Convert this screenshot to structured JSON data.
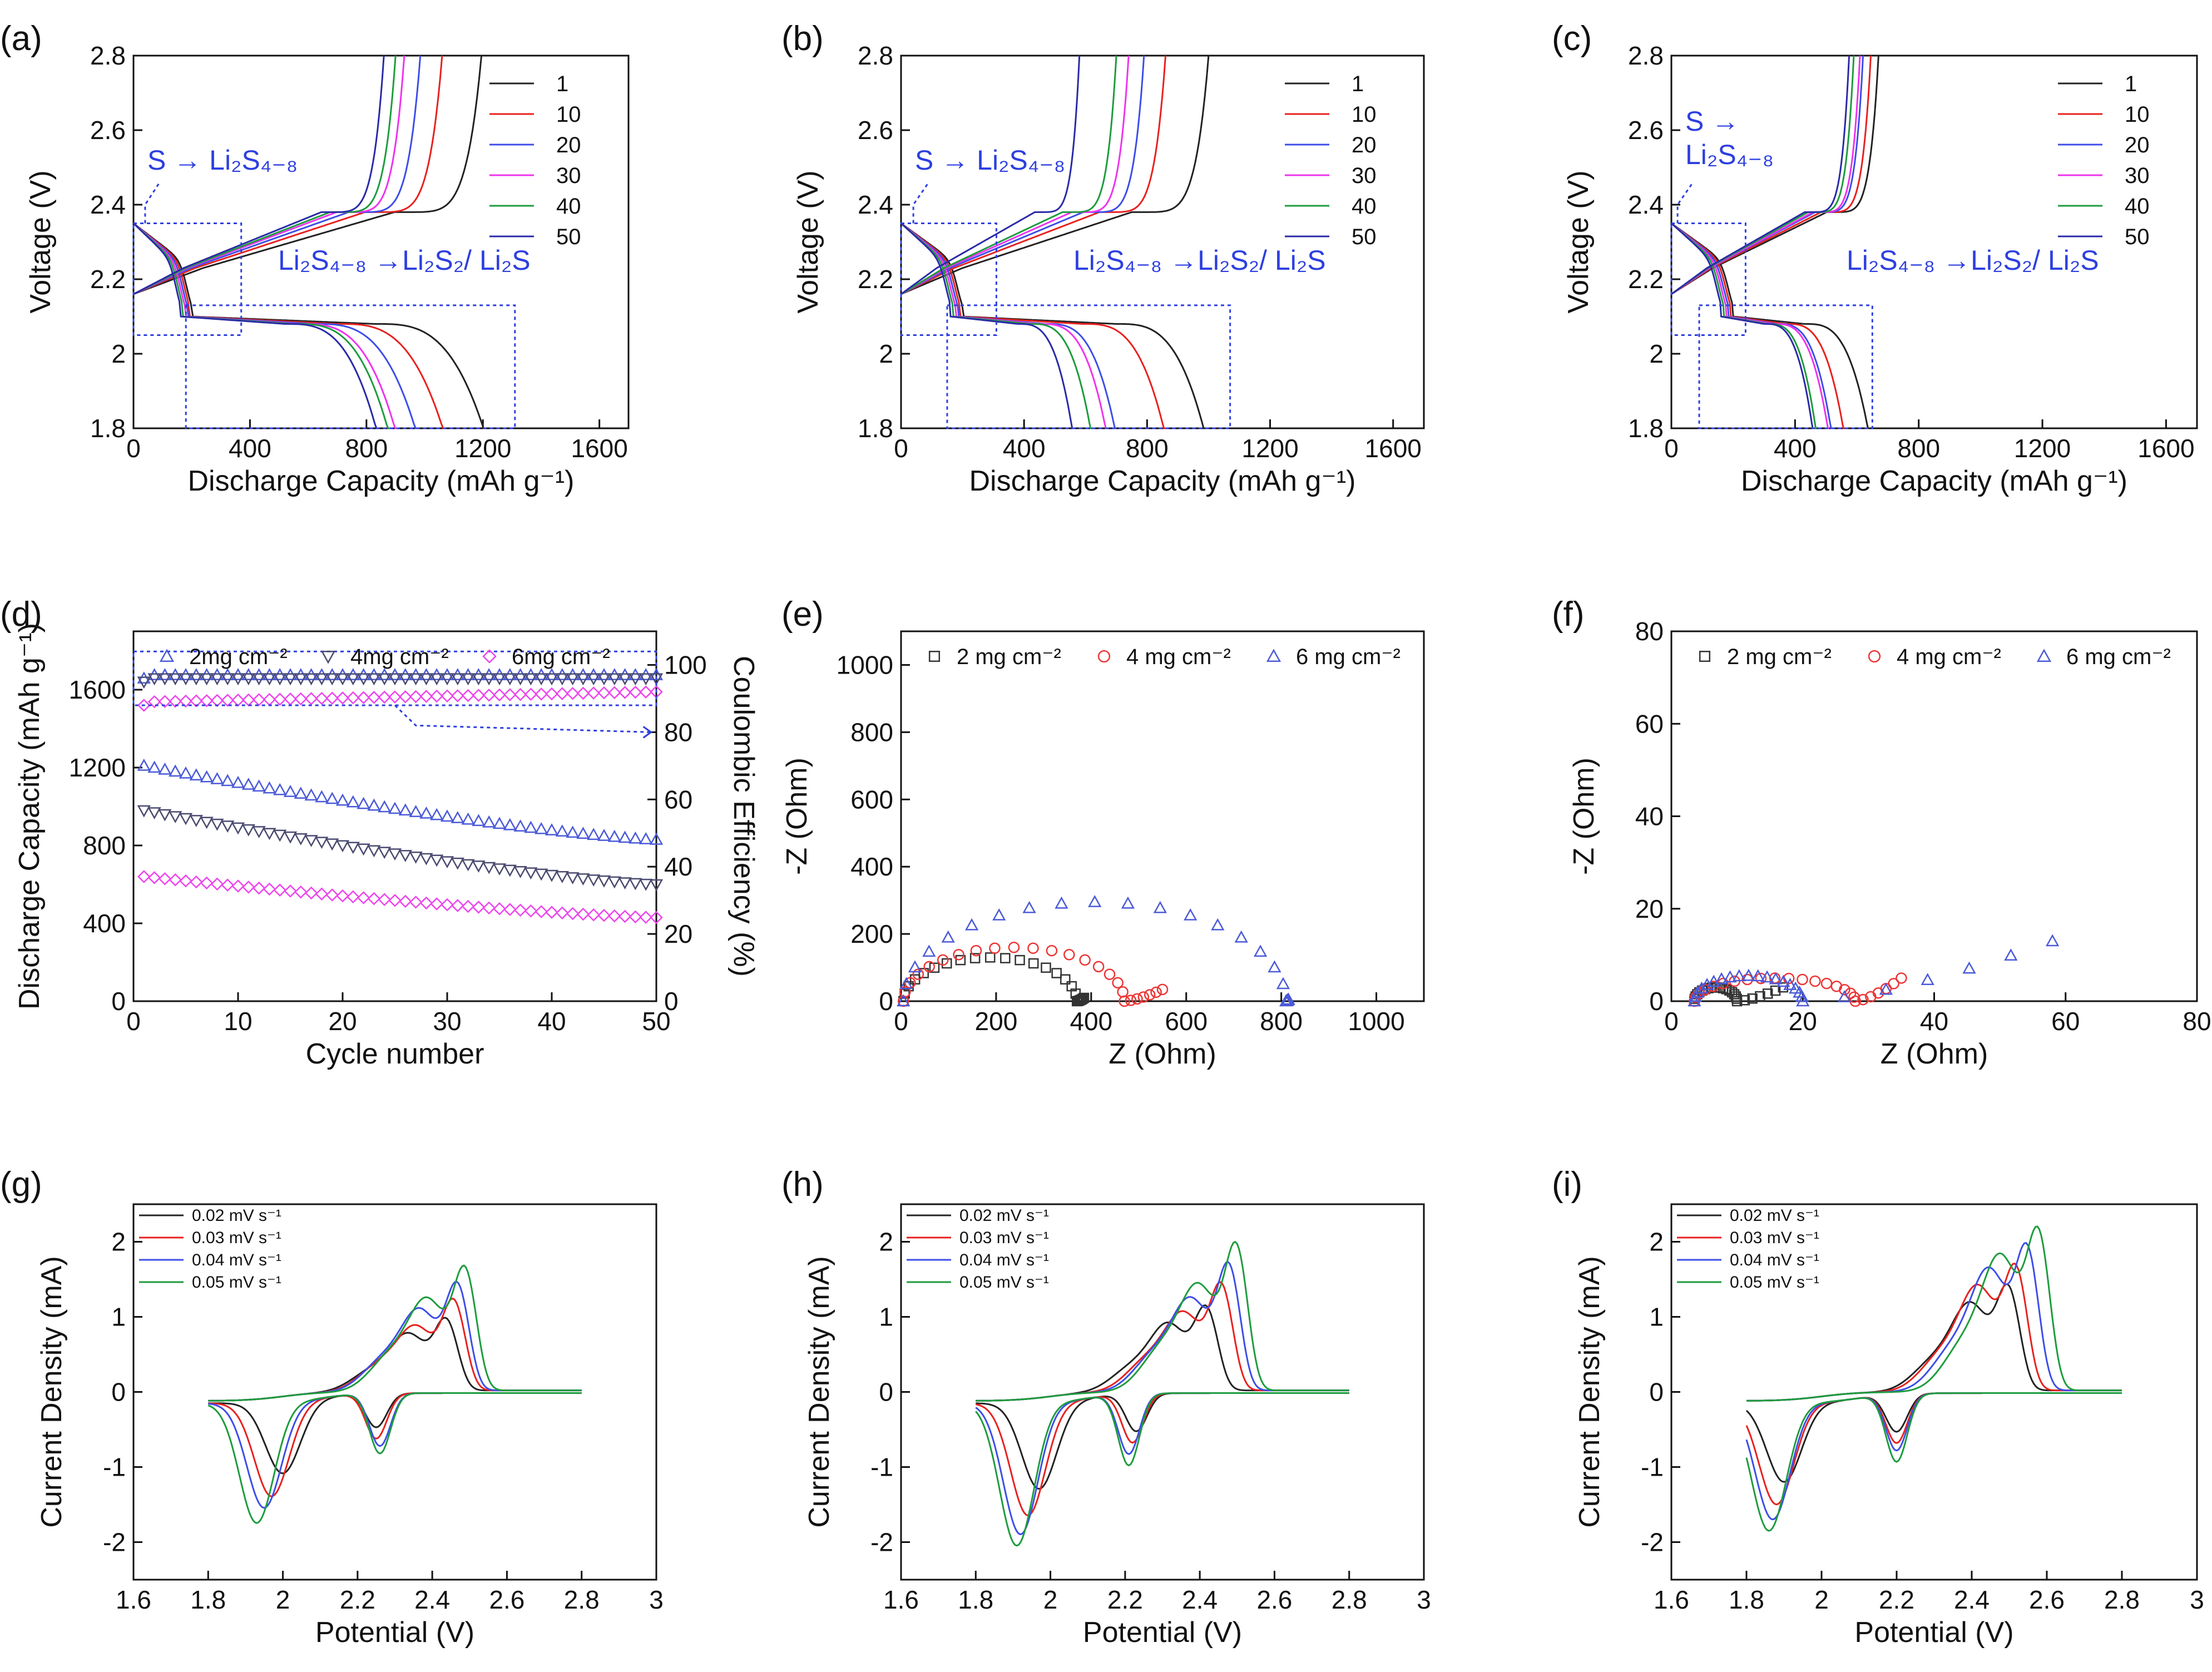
{
  "chart_data": [
    {
      "id": "a",
      "panel_label": "(a)",
      "type": "line",
      "xlabel": "Discharge Capacity (mAh g⁻¹)",
      "ylabel": "Voltage (V)",
      "xlim": [
        0,
        1700
      ],
      "ylim": [
        1.8,
        2.8
      ],
      "xticks": [
        0,
        400,
        800,
        1200,
        1600
      ],
      "yticks": [
        1.8,
        2.0,
        2.2,
        2.4,
        2.6,
        2.8
      ],
      "legend": {
        "position": "top-right",
        "entries": [
          "1",
          "10",
          "20",
          "30",
          "40",
          "50"
        ]
      },
      "series": [
        {
          "name": "1",
          "color": "#222222",
          "discharge_end": 1210,
          "charge_end": 1195,
          "plateau_end": 830
        },
        {
          "name": "10",
          "color": "#e8211f",
          "discharge_end": 1070,
          "charge_end": 1060,
          "plateau_end": 700
        },
        {
          "name": "20",
          "color": "#3d4ee8",
          "discharge_end": 975,
          "charge_end": 985,
          "plateau_end": 620
        },
        {
          "name": "30",
          "color": "#ee33ee",
          "discharge_end": 905,
          "charge_end": 930,
          "plateau_end": 570
        },
        {
          "name": "40",
          "color": "#1d9c3d",
          "discharge_end": 880,
          "charge_end": 900,
          "plateau_end": 550
        },
        {
          "name": "50",
          "color": "#2a2aa8",
          "discharge_end": 840,
          "charge_end": 860,
          "plateau_end": 520
        }
      ],
      "annotations": [
        {
          "text": "S → Li₂S₄₋₈"
        },
        {
          "text": "Li₂S₄₋₈ →Li₂S₂/ Li₂S"
        }
      ],
      "upper_box": {
        "x": [
          0,
          370
        ],
        "y": [
          2.05,
          2.35
        ]
      },
      "lower_box": {
        "x": [
          180,
          1310
        ],
        "y": [
          1.8,
          2.13
        ]
      }
    },
    {
      "id": "b",
      "panel_label": "(b)",
      "type": "line",
      "xlabel": "Discharge Capacity (mAh g⁻¹)",
      "ylabel": "Voltage (V)",
      "xlim": [
        0,
        1700
      ],
      "ylim": [
        1.8,
        2.8
      ],
      "xticks": [
        0,
        400,
        800,
        1200,
        1600
      ],
      "yticks": [
        1.8,
        2.0,
        2.2,
        2.4,
        2.6,
        2.8
      ],
      "legend": {
        "position": "top-right",
        "entries": [
          "1",
          "10",
          "20",
          "30",
          "40",
          "50"
        ]
      },
      "series": [
        {
          "name": "1",
          "color": "#222222",
          "discharge_end": 990,
          "charge_end": 1000,
          "plateau_end": 700
        },
        {
          "name": "10",
          "color": "#e8211f",
          "discharge_end": 860,
          "charge_end": 860,
          "plateau_end": 590
        },
        {
          "name": "20",
          "color": "#3d4ee8",
          "discharge_end": 700,
          "charge_end": 790,
          "plateau_end": 470
        },
        {
          "name": "30",
          "color": "#ee33ee",
          "discharge_end": 670,
          "charge_end": 740,
          "plateau_end": 450
        },
        {
          "name": "40",
          "color": "#1d9c3d",
          "discharge_end": 620,
          "charge_end": 700,
          "plateau_end": 420
        },
        {
          "name": "50",
          "color": "#2a2aa8",
          "discharge_end": 560,
          "charge_end": 580,
          "plateau_end": 380
        }
      ],
      "annotations": [
        {
          "text": "S → Li₂S₄₋₈"
        },
        {
          "text": "Li₂S₄₋₈ →Li₂S₂/ Li₂S"
        }
      ],
      "upper_box": {
        "x": [
          0,
          310
        ],
        "y": [
          2.05,
          2.35
        ]
      },
      "lower_box": {
        "x": [
          150,
          1070
        ],
        "y": [
          1.8,
          2.13
        ]
      }
    },
    {
      "id": "c",
      "panel_label": "(c)",
      "type": "line",
      "xlabel": "Discharge Capacity (mAh g⁻¹)",
      "ylabel": "Voltage (V)",
      "xlim": [
        0,
        1700
      ],
      "ylim": [
        1.8,
        2.8
      ],
      "xticks": [
        0,
        400,
        800,
        1200,
        1600
      ],
      "yticks": [
        1.8,
        2.0,
        2.2,
        2.4,
        2.6,
        2.8
      ],
      "legend": {
        "position": "top-right",
        "entries": [
          "1",
          "10",
          "20",
          "30",
          "40",
          "50"
        ]
      },
      "series": [
        {
          "name": "1",
          "color": "#222222",
          "discharge_end": 640,
          "charge_end": 670,
          "plateau_end": 430
        },
        {
          "name": "10",
          "color": "#e8211f",
          "discharge_end": 560,
          "charge_end": 645,
          "plateau_end": 370
        },
        {
          "name": "20",
          "color": "#3d4ee8",
          "discharge_end": 520,
          "charge_end": 620,
          "plateau_end": 340
        },
        {
          "name": "30",
          "color": "#ee33ee",
          "discharge_end": 510,
          "charge_end": 610,
          "plateau_end": 330
        },
        {
          "name": "40",
          "color": "#1d9c3d",
          "discharge_end": 470,
          "charge_end": 590,
          "plateau_end": 310
        },
        {
          "name": "50",
          "color": "#2a2aa8",
          "discharge_end": 460,
          "charge_end": 575,
          "plateau_end": 300
        }
      ],
      "annotations": [
        {
          "text": "S →"
        },
        {
          "text": "Li₂S₄₋₈"
        },
        {
          "text": "Li₂S₄₋₈ →Li₂S₂/ Li₂S"
        }
      ],
      "upper_box": {
        "x": [
          0,
          240
        ],
        "y": [
          2.05,
          2.35
        ]
      },
      "lower_box": {
        "x": [
          90,
          650
        ],
        "y": [
          1.8,
          2.13
        ]
      }
    },
    {
      "id": "d",
      "panel_label": "(d)",
      "type": "scatter",
      "xlabel": "Cycle number",
      "ylabel": "Discharge Capacity (mAh g⁻¹)",
      "y2label": "Coulombic Efficiency (%)",
      "xlim": [
        0,
        50
      ],
      "ylim": [
        0,
        1900
      ],
      "y2lim": [
        0,
        110
      ],
      "xticks": [
        0,
        10,
        20,
        30,
        40,
        50
      ],
      "yticks": [
        0,
        400,
        800,
        1200,
        1600
      ],
      "y2ticks": [
        0,
        20,
        40,
        60,
        80,
        100
      ],
      "legend": {
        "position": "top",
        "entries": [
          "2mg cm⁻²",
          "4mg cm⁻²",
          "6mg cm⁻²"
        ]
      },
      "series": [
        {
          "name": "2mg cm⁻²",
          "marker": "triangle-up",
          "color": "#4a5ad8",
          "capacity_start": 1210,
          "capacity_end": 830,
          "ce": 97
        },
        {
          "name": "4mg cm⁻²",
          "marker": "triangle-down",
          "color": "#4a4a70",
          "capacity_start": 980,
          "capacity_end": 600,
          "ce": 96
        },
        {
          "name": "6mg cm⁻²",
          "marker": "diamond",
          "color": "#ee44ee",
          "capacity_start": 640,
          "capacity_end": 430,
          "ce": 89
        }
      ],
      "ce_box": {
        "x": [
          0,
          50
        ],
        "y2": [
          88,
          104
        ]
      }
    },
    {
      "id": "e",
      "panel_label": "(e)",
      "type": "scatter",
      "xlabel": "Z (Ohm)",
      "ylabel": "-Z (Ohm)",
      "xlim": [
        0,
        1100
      ],
      "ylim": [
        0,
        1100
      ],
      "xticks": [
        0,
        200,
        400,
        600,
        800,
        1000
      ],
      "yticks": [
        0,
        200,
        400,
        600,
        800,
        1000
      ],
      "legend": {
        "position": "top",
        "entries": [
          "2 mg cm⁻²",
          "4 mg cm⁻²",
          "6 mg cm⁻²"
        ]
      },
      "series": [
        {
          "name": "2 mg cm⁻²",
          "marker": "square",
          "color": "#333333",
          "r0": 5,
          "r1": 370,
          "peak": 130,
          "tail_to": 385,
          "tail_height": 10
        },
        {
          "name": "4 mg cm⁻²",
          "marker": "circle",
          "color": "#ee3333",
          "r0": 5,
          "r1": 470,
          "peak": 160,
          "tail_to": 550,
          "tail_height": 35
        },
        {
          "name": "6 mg cm⁻²",
          "marker": "triangle-up",
          "color": "#4a5ad8",
          "r0": 5,
          "r1": 810,
          "peak": 295,
          "tail_to": 815,
          "tail_height": 5
        }
      ]
    },
    {
      "id": "f",
      "panel_label": "(f)",
      "type": "scatter",
      "xlabel": "Z (Ohm)",
      "ylabel": "-Z (Ohm)",
      "xlim": [
        0,
        80
      ],
      "ylim": [
        0,
        80
      ],
      "xticks": [
        0,
        20,
        40,
        60,
        80
      ],
      "yticks": [
        0,
        20,
        40,
        60,
        80
      ],
      "legend": {
        "position": "top",
        "entries": [
          "2 mg cm⁻²",
          "4 mg cm⁻²",
          "6 mg cm⁻²"
        ]
      },
      "series": [
        {
          "name": "2 mg cm⁻²",
          "marker": "square",
          "color": "#333333",
          "r0": 3.5,
          "r1": 10,
          "peak": 3,
          "tail_to": 17,
          "tail_height": 3
        },
        {
          "name": "4 mg cm⁻²",
          "marker": "circle",
          "color": "#ee3333",
          "r0": 3.5,
          "r1": 28,
          "peak": 5,
          "tail_to": 35,
          "tail_height": 5
        },
        {
          "name": "6 mg cm⁻²",
          "marker": "triangle-up",
          "color": "#4a5ad8",
          "r0": 3.5,
          "r1": 20,
          "peak": 5.5,
          "tail_to": 58,
          "tail_height": 13
        }
      ]
    },
    {
      "id": "g",
      "panel_label": "(g)",
      "type": "line",
      "xlabel": "Potential (V)",
      "ylabel": "Current Density (mA)",
      "xlim": [
        1.6,
        3.0
      ],
      "ylim": [
        -2.5,
        2.5
      ],
      "xticks": [
        1.6,
        1.8,
        2.0,
        2.2,
        2.4,
        2.6,
        2.8,
        3.0
      ],
      "yticks": [
        -2,
        -1,
        0,
        1,
        2
      ],
      "legend": {
        "position": "top-left",
        "entries": [
          "0.02 mV s⁻¹",
          "0.03 mV s⁻¹",
          "0.04 mV s⁻¹",
          "0.05 mV s⁻¹"
        ]
      },
      "series": [
        {
          "name": "0.02 mV s⁻¹",
          "color": "#222222",
          "red1_v": 2.0,
          "red1_i": -0.95,
          "red2_v": 2.25,
          "red2_i": -0.45,
          "ox_v": 2.44,
          "ox_i": 0.9,
          "ox2_i": 0.85
        },
        {
          "name": "0.03 mV s⁻¹",
          "color": "#e8211f",
          "red1_v": 1.97,
          "red1_i": -1.25,
          "red2_v": 2.25,
          "red2_i": -0.6,
          "ox_v": 2.46,
          "ox_i": 1.15,
          "ox2_i": 0.95
        },
        {
          "name": "0.04 mV s⁻¹",
          "color": "#3d4ee8",
          "red1_v": 1.95,
          "red1_i": -1.4,
          "red2_v": 2.26,
          "red2_i": -0.7,
          "ox_v": 2.47,
          "ox_i": 1.35,
          "ox2_i": 1.2
        },
        {
          "name": "0.05 mV s⁻¹",
          "color": "#1d9c3d",
          "red1_v": 1.93,
          "red1_i": -1.6,
          "red2_v": 2.26,
          "red2_i": -0.8,
          "ox_v": 2.49,
          "ox_i": 1.55,
          "ox2_i": 1.35
        }
      ]
    },
    {
      "id": "h",
      "panel_label": "(h)",
      "type": "line",
      "xlabel": "Potential (V)",
      "ylabel": "Current Density (mA)",
      "xlim": [
        1.6,
        3.0
      ],
      "ylim": [
        -2.5,
        2.5
      ],
      "xticks": [
        1.6,
        1.8,
        2.0,
        2.2,
        2.4,
        2.6,
        2.8,
        3.0
      ],
      "yticks": [
        -2,
        -1,
        0,
        1,
        2
      ],
      "legend": {
        "position": "top-left",
        "entries": [
          "0.02 mV s⁻¹",
          "0.03 mV s⁻¹",
          "0.04 mV s⁻¹",
          "0.05 mV s⁻¹"
        ]
      },
      "series": [
        {
          "name": "0.02 mV s⁻¹",
          "color": "#222222",
          "red1_v": 1.97,
          "red1_i": -1.15,
          "red2_v": 2.23,
          "red2_i": -0.5,
          "ox_v": 2.42,
          "ox_i": 1.05,
          "ox2_i": 1.0
        },
        {
          "name": "0.03 mV s⁻¹",
          "color": "#e8211f",
          "red1_v": 1.94,
          "red1_i": -1.5,
          "red2_v": 2.22,
          "red2_i": -0.65,
          "ox_v": 2.46,
          "ox_i": 1.35,
          "ox2_i": 1.15
        },
        {
          "name": "0.04 mV s⁻¹",
          "color": "#3d4ee8",
          "red1_v": 1.92,
          "red1_i": -1.75,
          "red2_v": 2.21,
          "red2_i": -0.8,
          "ox_v": 2.48,
          "ox_i": 1.6,
          "ox2_i": 1.35
        },
        {
          "name": "0.05 mV s⁻¹",
          "color": "#1d9c3d",
          "red1_v": 1.91,
          "red1_i": -1.9,
          "red2_v": 2.21,
          "red2_i": -0.95,
          "ox_v": 2.5,
          "ox_i": 1.85,
          "ox2_i": 1.55
        }
      ]
    },
    {
      "id": "i",
      "panel_label": "(i)",
      "type": "line",
      "xlabel": "Potential (V)",
      "ylabel": "Current Density (mA)",
      "xlim": [
        1.6,
        3.0
      ],
      "ylim": [
        -2.5,
        2.5
      ],
      "xticks": [
        1.6,
        1.8,
        2.0,
        2.2,
        2.4,
        2.6,
        2.8,
        3.0
      ],
      "yticks": [
        -2,
        -1,
        0,
        1,
        2
      ],
      "legend": {
        "position": "top-left",
        "entries": [
          "0.02 mV s⁻¹",
          "0.03 mV s⁻¹",
          "0.04 mV s⁻¹",
          "0.05 mV s⁻¹"
        ]
      },
      "series": [
        {
          "name": "0.02 mV s⁻¹",
          "color": "#222222",
          "red1_v": 1.9,
          "red1_i": -1.05,
          "red2_v": 2.2,
          "red2_i": -0.5,
          "ox_v": 2.5,
          "ox_i": 1.3,
          "ox2_i": 1.3
        },
        {
          "name": "0.03 mV s⁻¹",
          "color": "#e8211f",
          "red1_v": 1.88,
          "red1_i": -1.35,
          "red2_v": 2.2,
          "red2_i": -0.65,
          "ox_v": 2.52,
          "ox_i": 1.55,
          "ox2_i": 1.55
        },
        {
          "name": "0.04 mV s⁻¹",
          "color": "#3d4ee8",
          "red1_v": 1.87,
          "red1_i": -1.55,
          "red2_v": 2.2,
          "red2_i": -0.75,
          "ox_v": 2.55,
          "ox_i": 1.8,
          "ox2_i": 1.8
        },
        {
          "name": "0.05 mV s⁻¹",
          "color": "#1d9c3d",
          "red1_v": 1.86,
          "red1_i": -1.7,
          "red2_v": 2.2,
          "red2_i": -0.9,
          "ox_v": 2.58,
          "ox_i": 2.0,
          "ox2_i": 2.0
        }
      ]
    }
  ]
}
